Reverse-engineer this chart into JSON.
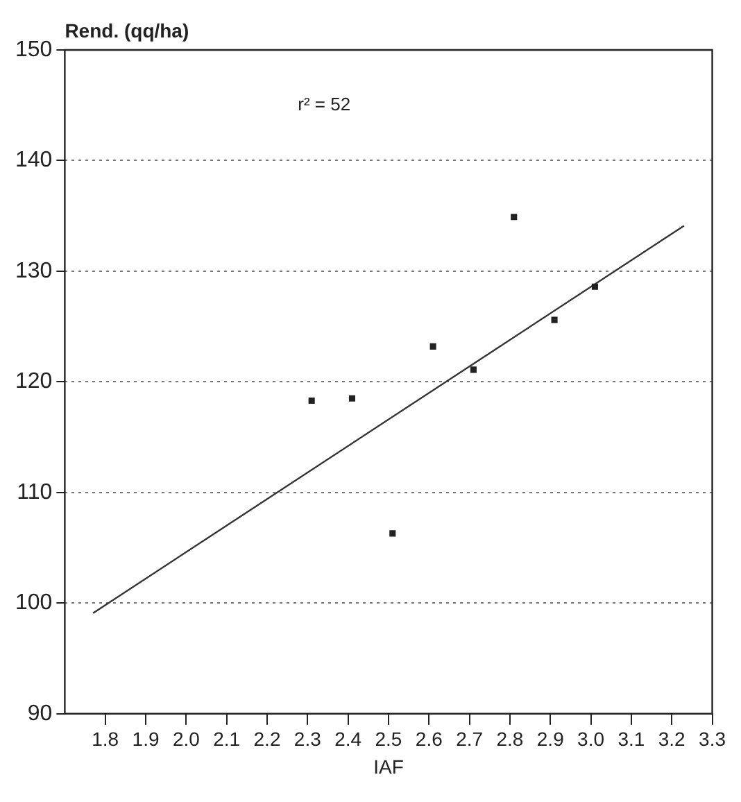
{
  "chart_data": {
    "type": "scatter",
    "ylabel": "Rend. (qq/ha)",
    "xlabel": "IAF",
    "annotations": [
      "r² = 52"
    ],
    "xlim": [
      1.7,
      3.3
    ],
    "xticks": [
      1.8,
      1.9,
      {
        "value": 2.0,
        "label": "2.0"
      },
      2.1,
      2.2,
      2.3,
      2.4,
      2.5,
      2.6,
      2.7,
      2.8,
      2.9,
      {
        "value": 3.0,
        "label": "3.0"
      },
      3.1,
      3.2,
      3.3
    ],
    "ylim": [
      90,
      150
    ],
    "yticks": [
      90,
      100,
      110,
      120,
      130,
      140,
      150
    ],
    "grid": "y",
    "legend": false,
    "series": [
      {
        "type": "scatter",
        "color": "#222222",
        "marker": "square",
        "x": [
          2.81,
          3.01,
          2.91,
          2.61,
          2.71,
          2.31,
          2.41,
          2.51
        ],
        "values": [
          134.9,
          128.6,
          125.6,
          123.2,
          121.1,
          118.3,
          118.5,
          106.3
        ]
      },
      {
        "type": "line",
        "color": "#333333",
        "marker": "none",
        "line_style": "solid",
        "x": [
          1.77,
          3.23
        ],
        "values": [
          99.1,
          134.1
        ]
      }
    ]
  }
}
